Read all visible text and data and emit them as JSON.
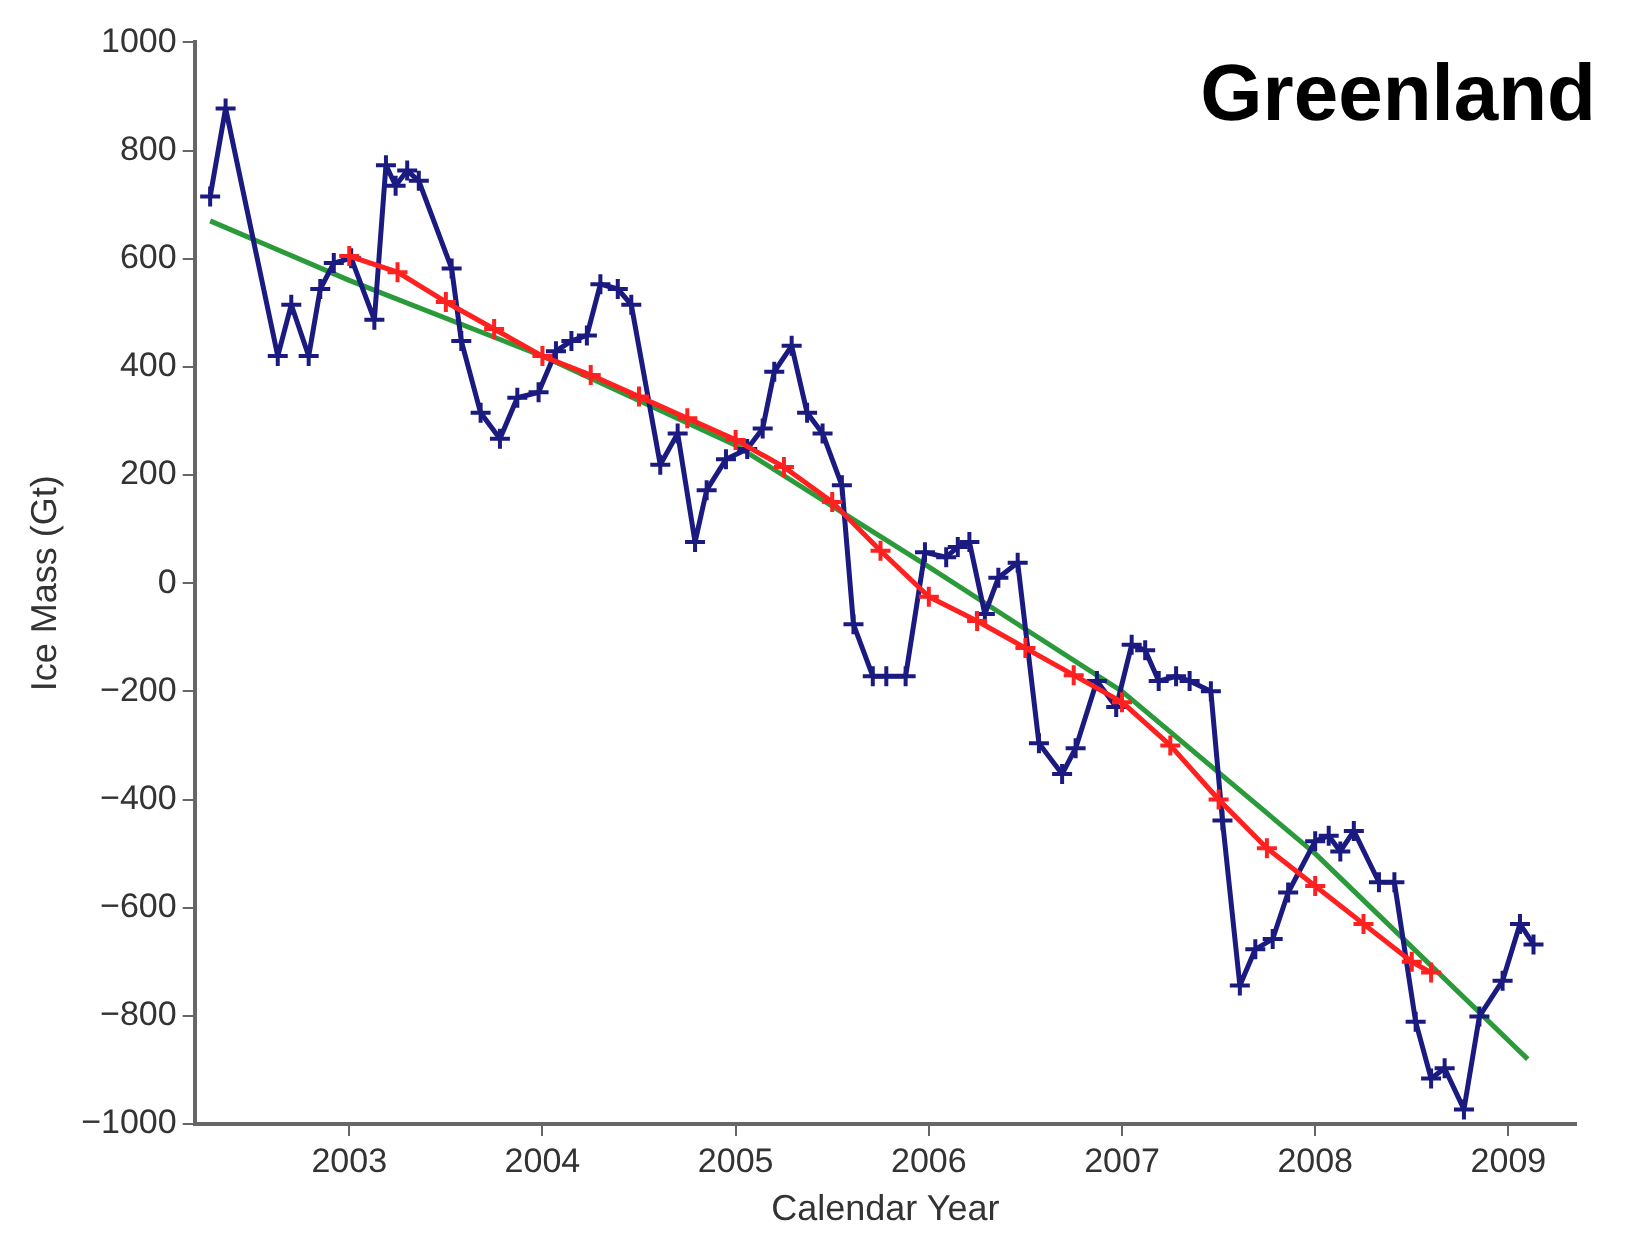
{
  "chart_data": {
    "type": "line",
    "title": "Greenland",
    "xlabel": "Calendar Year",
    "ylabel": "Ice Mass (Gt)",
    "xlim": [
      2002.2,
      2009.35
    ],
    "xticks": [
      2003,
      2004,
      2005,
      2006,
      2007,
      2008,
      2009
    ],
    "ylim": [
      -1000,
      1000
    ],
    "yticks": [
      -1000,
      -800,
      -600,
      -400,
      -200,
      0,
      200,
      400,
      600,
      800,
      1000
    ],
    "grid": false,
    "legend": false,
    "line_style": "solid",
    "series": [
      {
        "color": "#ff2020",
        "marker": "cross",
        "x": [
          2003.0,
          2003.25,
          2003.5,
          2003.75,
          2004.0,
          2004.25,
          2004.5,
          2004.75,
          2005.0,
          2005.25,
          2005.5,
          2005.75,
          2006.0,
          2006.25,
          2006.5,
          2006.75,
          2007.0,
          2007.25,
          2007.5,
          2007.75,
          2008.0,
          2008.25,
          2008.5,
          2008.6
        ],
        "values": [
          605,
          575,
          520,
          470,
          420,
          385,
          345,
          305,
          265,
          215,
          150,
          60,
          -25,
          -70,
          -120,
          -170,
          -220,
          -300,
          -400,
          -490,
          -560,
          -630,
          -700,
          -720
        ]
      },
      {
        "color": "#1a1a80",
        "marker": "cross",
        "x": [
          2002.28,
          2002.36,
          2002.63,
          2002.7,
          2002.79,
          2002.85,
          2002.92,
          2003.01,
          2003.13,
          2003.19,
          2003.24,
          2003.3,
          2003.36,
          2003.53,
          2003.58,
          2003.68,
          2003.78,
          2003.87,
          2003.98,
          2004.07,
          2004.15,
          2004.23,
          2004.3,
          2004.39,
          2004.46,
          2004.61,
          2004.7,
          2004.79,
          2004.85,
          2004.95,
          2005.06,
          2005.14,
          2005.2,
          2005.29,
          2005.37,
          2005.45,
          2005.55,
          2005.61,
          2005.71,
          2005.78,
          2005.88,
          2005.98,
          2006.09,
          2006.15,
          2006.21,
          2006.29,
          2006.36,
          2006.46,
          2006.57,
          2006.69,
          2006.76,
          2006.87,
          2006.97,
          2007.05,
          2007.12,
          2007.19,
          2007.28,
          2007.35,
          2007.46,
          2007.52,
          2007.61,
          2007.69,
          2007.78,
          2007.86,
          2008.0,
          2008.07,
          2008.13,
          2008.2,
          2008.33,
          2008.41,
          2008.52,
          2008.6,
          2008.67,
          2008.77,
          2008.85,
          2008.97,
          2009.06,
          2009.13
        ],
        "values": [
          715,
          878,
          420,
          515,
          420,
          544,
          592,
          601,
          487,
          773,
          735,
          763,
          744,
          582,
          448,
          315,
          267,
          343,
          353,
          429,
          448,
          458,
          553,
          544,
          515,
          219,
          277,
          76,
          172,
          229,
          248,
          286,
          391,
          439,
          315,
          277,
          181,
          -76,
          -172,
          -172,
          -172,
          57,
          48,
          67,
          76,
          -57,
          10,
          38,
          -296,
          -353,
          -305,
          -181,
          -229,
          -114,
          -124,
          -181,
          -172,
          -181,
          -200,
          -439,
          -744,
          -677,
          -658,
          -572,
          -477,
          -467,
          -496,
          -458,
          -553,
          -553,
          -811,
          -916,
          -897,
          -973,
          -801,
          -735,
          -630,
          -668
        ]
      },
      {
        "color": "#2a9a3a",
        "marker": "none",
        "x": [
          2002.28,
          2003,
          2004,
          2005,
          2006,
          2007,
          2008,
          2009.1
        ],
        "values": [
          670,
          560,
          420,
          255,
          30,
          -200,
          -500,
          -880
        ]
      }
    ]
  }
}
